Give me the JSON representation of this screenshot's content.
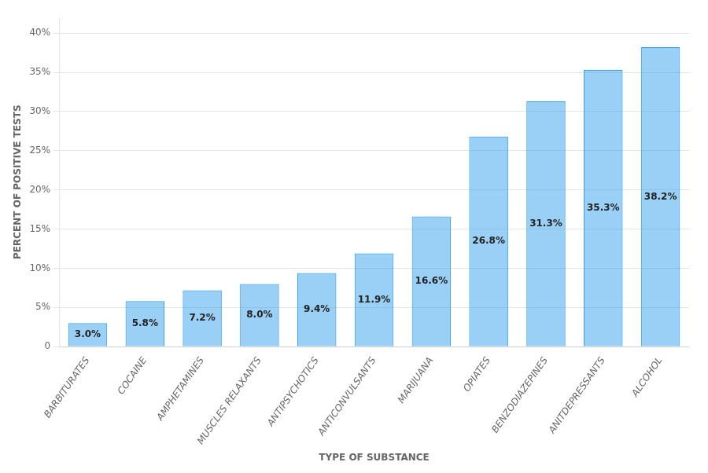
{
  "chart_data": {
    "type": "bar",
    "categories": [
      "BARBITURATES",
      "COCAINE",
      "AMPHETAMINES",
      "MUSCLES RELAXANTS",
      "ANTIPSYCHOTICS",
      "ANTICONVULSANTS",
      "MARIJUANA",
      "OPIATES",
      "BENZODIAZEPINES",
      "ANITDEPRESSANTS",
      "ALCOHOL"
    ],
    "values": [
      3.0,
      5.8,
      7.2,
      8.0,
      9.4,
      11.9,
      16.6,
      26.8,
      31.3,
      35.3,
      38.2
    ],
    "value_labels": [
      "3.0%",
      "5.8%",
      "7.2%",
      "8.0%",
      "9.4%",
      "11.9%",
      "16.6%",
      "26.8%",
      "31.3%",
      "35.3%",
      "38.2%"
    ],
    "data_labels": true,
    "xlabel": "TYPE OF SUBSTANCE",
    "ylabel": "PERCENT OF POSITIVE TESTS",
    "ylim": [
      0,
      42
    ],
    "yticks": [
      0,
      {
        "value": 5,
        "label": "5%"
      },
      {
        "value": 10,
        "label": "10%"
      },
      {
        "value": 15,
        "label": "15%"
      },
      {
        "value": 20,
        "label": "20%"
      },
      {
        "value": 25,
        "label": "25%"
      },
      {
        "value": 30,
        "label": "30%"
      },
      {
        "value": 35,
        "label": "35%"
      },
      {
        "value": 40,
        "label": "40%"
      }
    ],
    "grid": "y"
  }
}
